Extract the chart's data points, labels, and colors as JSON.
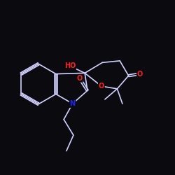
{
  "background_color": "#0a0a0f",
  "bond_color": "#d0d0ff",
  "atom_colors": {
    "O": "#ff2020",
    "N": "#2020ff",
    "C": "#d0d0ff"
  },
  "figsize": [
    2.5,
    2.5
  ],
  "dpi": 100
}
